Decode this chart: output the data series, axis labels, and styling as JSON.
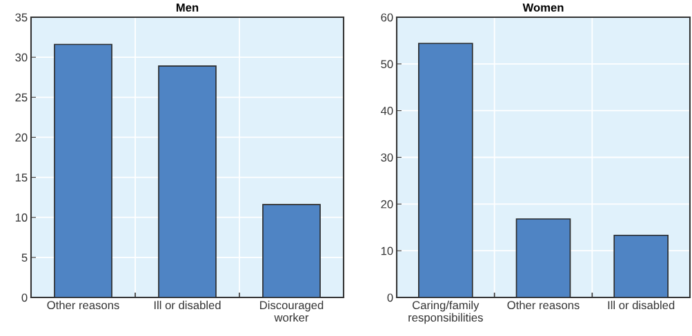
{
  "chart_data": [
    {
      "type": "bar",
      "title": "Men",
      "categories": [
        "Other reasons",
        "Ill or disabled",
        "Discouraged\nworker"
      ],
      "values": [
        31.6,
        28.9,
        11.6
      ],
      "color": "#4f84c4",
      "ylim": [
        0,
        35
      ],
      "yticks": [
        0,
        5,
        10,
        15,
        20,
        25,
        30,
        35
      ],
      "grid": true
    },
    {
      "type": "bar",
      "title": "Women",
      "categories": [
        "Caring/family\nresponsibilities",
        "Other reasons",
        "Ill or disabled"
      ],
      "values": [
        54.4,
        16.8,
        13.3
      ],
      "color": "#4f84c4",
      "ylim": [
        0,
        60
      ],
      "yticks": [
        0,
        10,
        20,
        30,
        40,
        50,
        60
      ],
      "grid": true
    }
  ]
}
